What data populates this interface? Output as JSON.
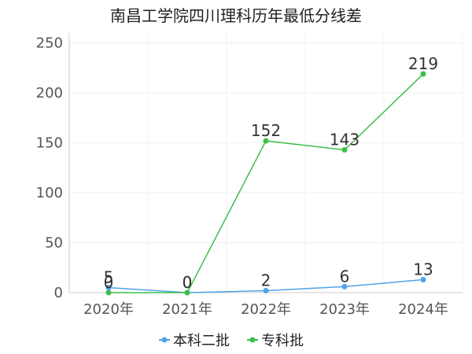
{
  "chart_data": {
    "type": "line",
    "title": "南昌工学院四川理科历年最低分线差",
    "categories": [
      "2020年",
      "2021年",
      "2022年",
      "2023年",
      "2024年"
    ],
    "series": [
      {
        "name": "本科二批",
        "values": [
          5,
          0,
          2,
          6,
          13
        ],
        "color": "#4da3ea"
      },
      {
        "name": "专科批",
        "values": [
          0,
          0,
          152,
          143,
          219
        ],
        "color": "#3cbf4a"
      }
    ],
    "ylim": [
      0,
      260
    ],
    "yticks": [
      0,
      50,
      100,
      150,
      200,
      250
    ],
    "grid": true,
    "legend_position": "bottom"
  }
}
